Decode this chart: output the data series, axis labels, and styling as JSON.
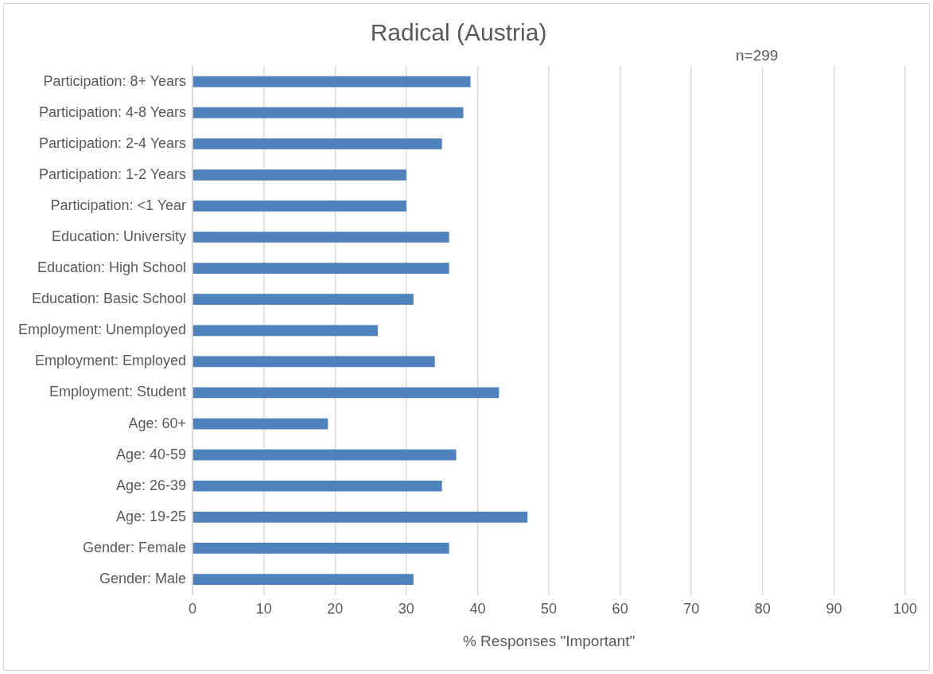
{
  "chart_data": {
    "type": "bar",
    "orientation": "horizontal",
    "title": "Radical (Austria)",
    "xlabel": "% Responses \"Important\"",
    "annotations": [
      "n=299"
    ],
    "categories": [
      "Participation: 8+ Years",
      "Participation: 4-8 Years",
      "Participation: 2-4 Years",
      "Participation: 1-2 Years",
      "Participation: <1 Year",
      "Education: University",
      "Education: High School",
      "Education: Basic School",
      "Employment: Unemployed",
      "Employment: Employed",
      "Employment: Student",
      "Age: 60+",
      "Age: 40-59",
      "Age: 26-39",
      "Age: 19-25",
      "Gender: Female",
      "Gender: Male"
    ],
    "values": [
      39,
      38,
      35,
      30,
      30,
      36,
      36,
      31,
      26,
      34,
      43,
      19,
      37,
      35,
      47,
      36,
      31
    ],
    "color": "#4f81bd",
    "xlim": [
      0,
      100
    ],
    "xticks": [
      0,
      10,
      20,
      30,
      40,
      50,
      60,
      70,
      80,
      90,
      100
    ],
    "grid": "x",
    "legend": false
  }
}
